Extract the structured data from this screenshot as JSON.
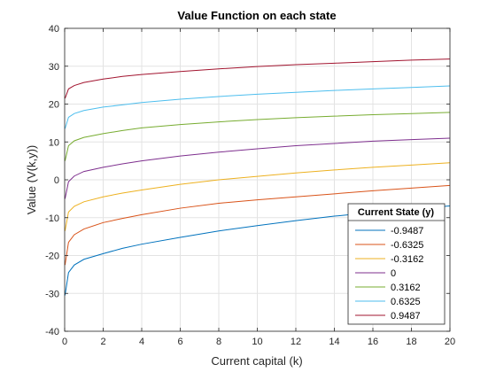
{
  "chart_data": {
    "type": "line",
    "title": "Value Function on each state",
    "xlabel": "Current capital (k)",
    "ylabel": "Value (V(k,y))",
    "xlim": [
      0,
      20
    ],
    "ylim": [
      -40,
      40
    ],
    "xticks": [
      0,
      2,
      4,
      6,
      8,
      10,
      12,
      14,
      16,
      18,
      20
    ],
    "yticks": [
      -40,
      -30,
      -20,
      -10,
      0,
      10,
      20,
      30,
      40
    ],
    "grid": true,
    "legend_title": "Current State (y)",
    "legend_location": "bottom-right",
    "x": [
      0.02,
      0.2,
      0.5,
      1,
      2,
      3,
      4,
      6,
      8,
      10,
      12,
      14,
      16,
      18,
      20
    ],
    "series": [
      {
        "name": "-0.9487",
        "color": "#0072BD",
        "values": [
          -30.5,
          -24.5,
          -22.5,
          -21.0,
          -19.5,
          -18.1,
          -17.0,
          -15.2,
          -13.5,
          -12.1,
          -10.8,
          -9.6,
          -8.6,
          -7.7,
          -6.9
        ]
      },
      {
        "name": "-0.6325",
        "color": "#D95319",
        "values": [
          -22.5,
          -16.5,
          -14.5,
          -13.0,
          -11.3,
          -10.2,
          -9.2,
          -7.5,
          -6.2,
          -5.3,
          -4.5,
          -3.7,
          -2.9,
          -2.2,
          -1.5
        ]
      },
      {
        "name": "-0.3162",
        "color": "#EDB120",
        "values": [
          -13.5,
          -8.5,
          -7.0,
          -5.8,
          -4.5,
          -3.5,
          -2.7,
          -1.2,
          0.0,
          0.9,
          1.8,
          2.6,
          3.3,
          3.9,
          4.5
        ]
      },
      {
        "name": "0",
        "color": "#7E2F8E",
        "values": [
          -5.0,
          -0.5,
          1.0,
          2.2,
          3.3,
          4.2,
          5.0,
          6.3,
          7.3,
          8.2,
          9.0,
          9.6,
          10.2,
          10.6,
          11.0
        ]
      },
      {
        "name": "0.3162",
        "color": "#77AC30",
        "values": [
          5.0,
          9.0,
          10.3,
          11.2,
          12.2,
          13.0,
          13.7,
          14.6,
          15.3,
          15.9,
          16.4,
          16.8,
          17.2,
          17.5,
          17.8
        ]
      },
      {
        "name": "0.6325",
        "color": "#4DBEEE",
        "values": [
          13.5,
          16.5,
          17.5,
          18.3,
          19.2,
          19.8,
          20.4,
          21.3,
          22.0,
          22.6,
          23.1,
          23.6,
          24.0,
          24.4,
          24.8
        ]
      },
      {
        "name": "0.9487",
        "color": "#A2142F",
        "values": [
          21.5,
          24.0,
          24.9,
          25.7,
          26.6,
          27.3,
          27.8,
          28.6,
          29.3,
          29.9,
          30.4,
          30.8,
          31.2,
          31.6,
          31.9
        ]
      }
    ]
  }
}
